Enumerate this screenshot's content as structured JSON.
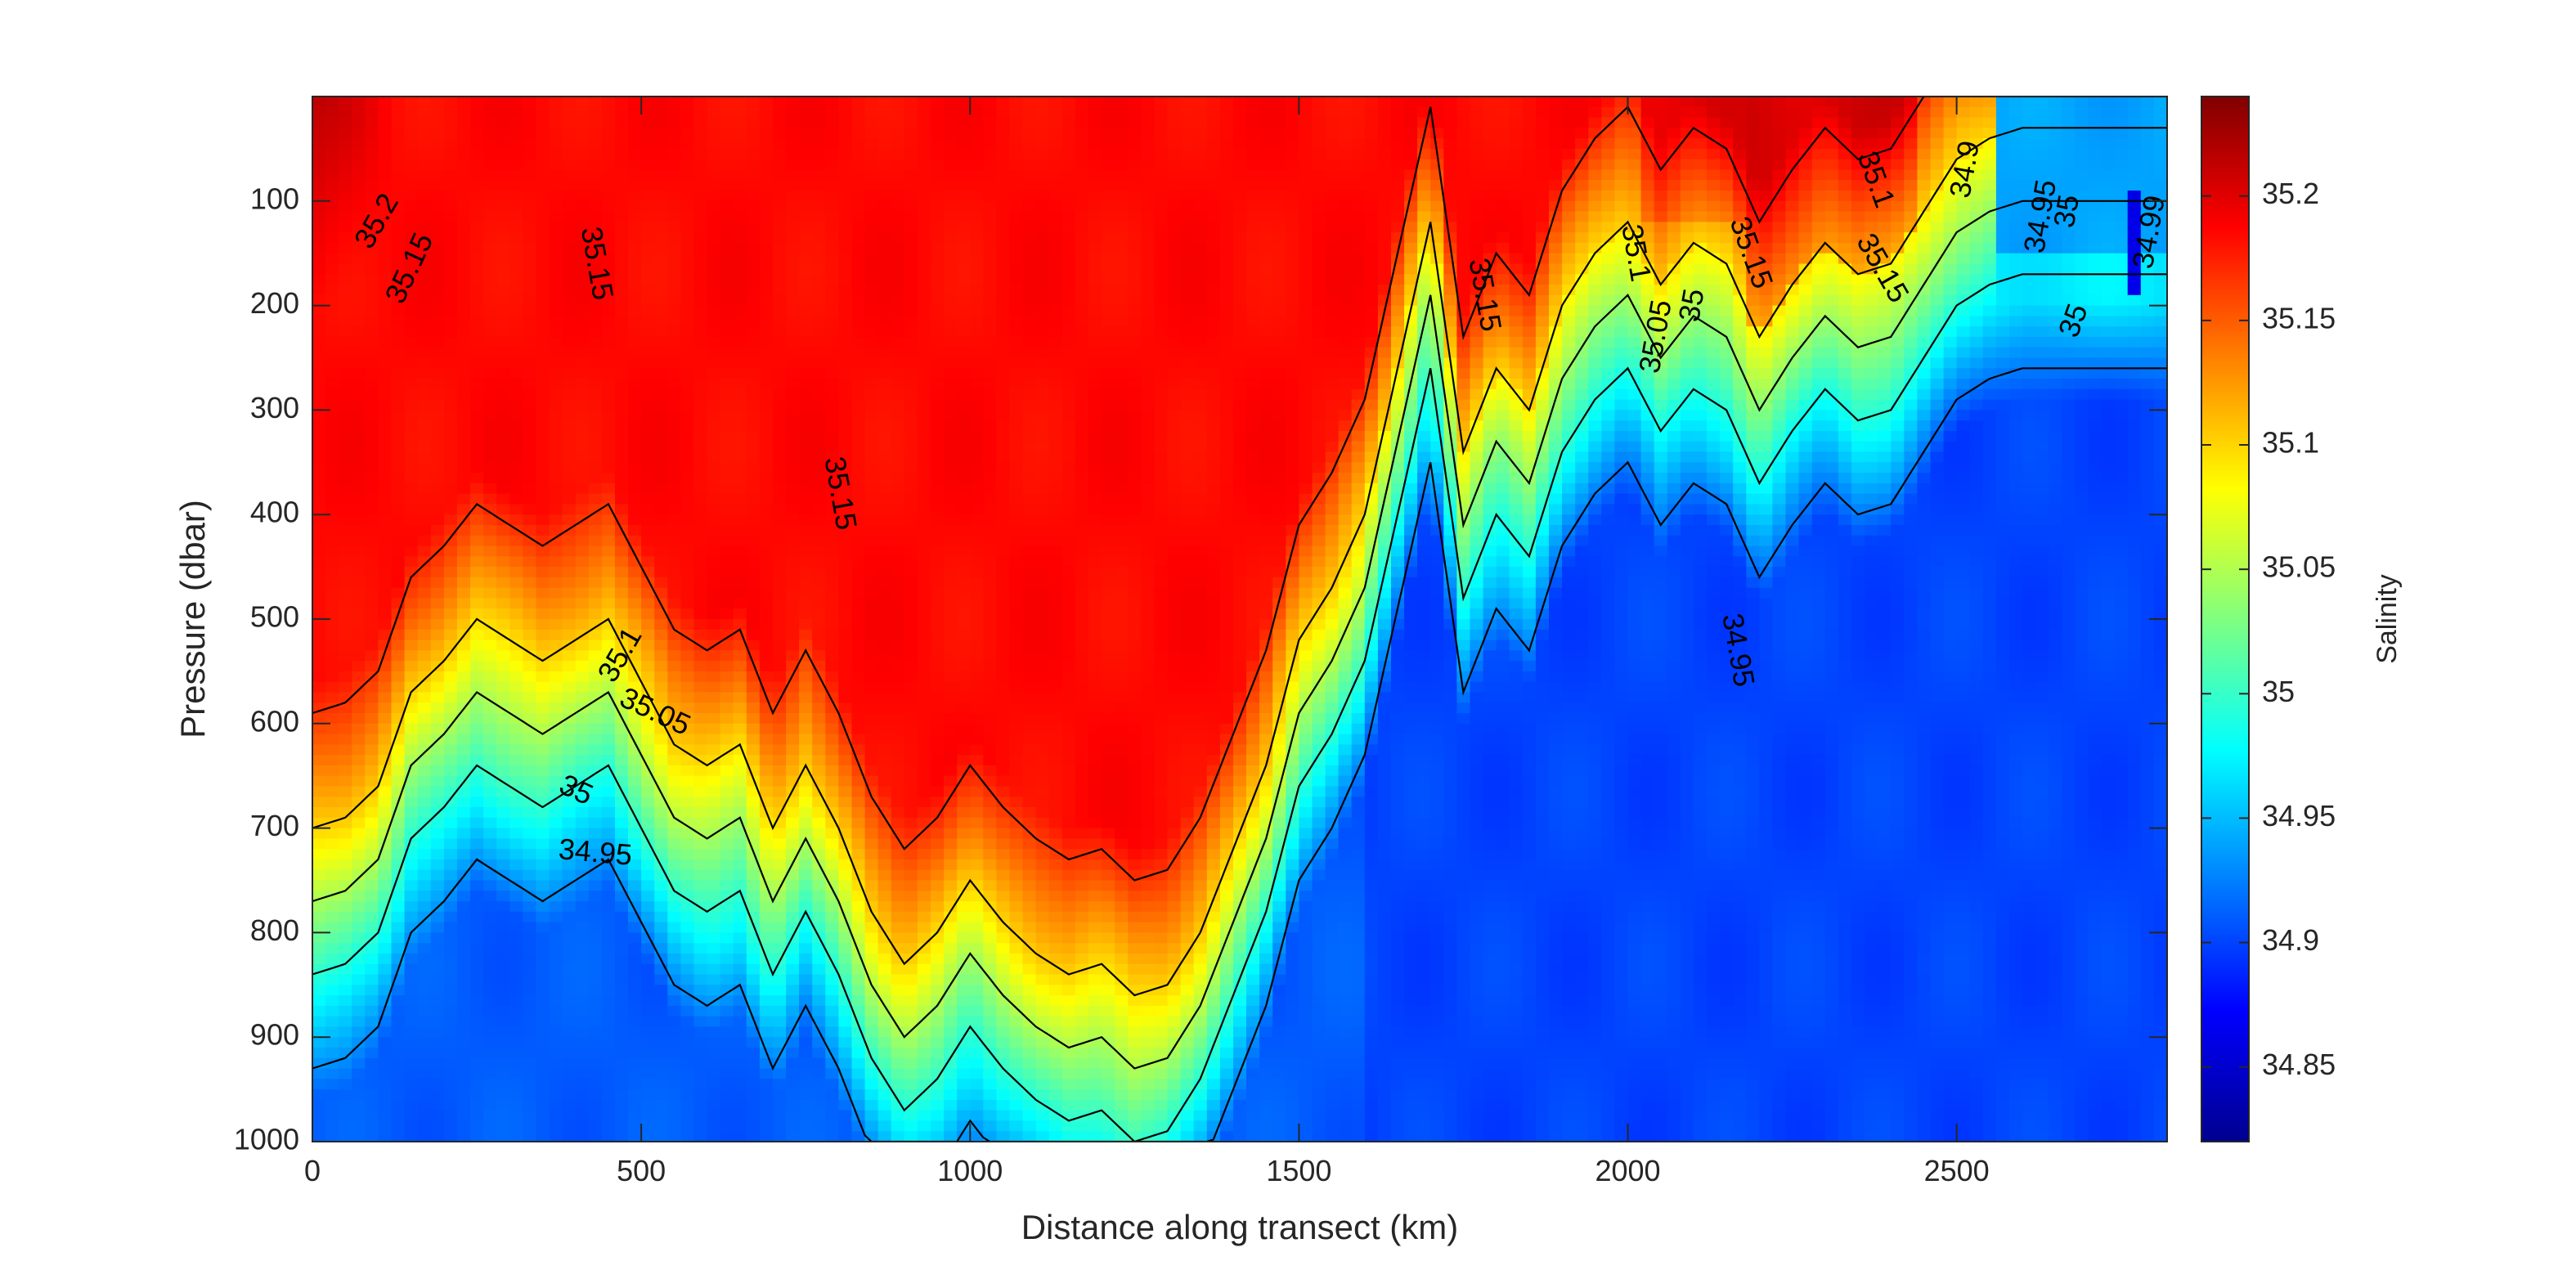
{
  "chart_data": {
    "type": "heatmap",
    "subtype": "filled-contour",
    "title": "",
    "xlabel": "Distance along transect (km)",
    "ylabel": "Pressure (dbar)",
    "colorbar_label": "Salinity",
    "xlim": [
      0,
      2820
    ],
    "ylim": [
      0,
      1000
    ],
    "y_reversed": true,
    "clim": [
      34.82,
      35.24
    ],
    "colormap": "jet",
    "colormap_stops": [
      "#00008f",
      "#0000ff",
      "#0080ff",
      "#00ffff",
      "#80ff80",
      "#ffff00",
      "#ff8000",
      "#ff0000",
      "#800000"
    ],
    "x_ticks": [
      0,
      500,
      1000,
      1500,
      2000,
      2500
    ],
    "x_tick_labels": [
      "0",
      "500",
      "1000",
      "1500",
      "2000",
      "2500"
    ],
    "y_ticks": [
      100,
      200,
      300,
      400,
      500,
      600,
      700,
      800,
      900,
      1000
    ],
    "y_tick_labels": [
      "100",
      "200",
      "300",
      "400",
      "500",
      "600",
      "700",
      "800",
      "900",
      "1000"
    ],
    "colorbar_ticks": [
      34.85,
      34.9,
      34.95,
      35,
      35.05,
      35.1,
      35.15,
      35.2
    ],
    "colorbar_tick_labels": [
      "34.85",
      "34.9",
      "34.95",
      "35",
      "35.05",
      "35.1",
      "35.15",
      "35.2"
    ],
    "contour_levels": [
      34.9,
      34.95,
      35,
      35.05,
      35.1,
      35.15,
      35.2
    ],
    "grid": false,
    "interface_depth": {
      "description_units": "pressure (dbar) of the 35.1 isohaline along distance (km)",
      "x": [
        0,
        50,
        100,
        150,
        200,
        250,
        300,
        350,
        400,
        450,
        500,
        550,
        600,
        650,
        700,
        750,
        800,
        850,
        900,
        950,
        1000,
        1050,
        1100,
        1150,
        1200,
        1250,
        1300,
        1350,
        1400,
        1450,
        1500,
        1550,
        1600,
        1650,
        1700,
        1750,
        1800,
        1850,
        1900,
        1950,
        2000,
        2050,
        2100,
        2150,
        2200,
        2250,
        2300,
        2350,
        2400,
        2450,
        2500,
        2550,
        2600,
        2650,
        2700,
        2750,
        2800,
        2820
      ],
      "depth": [
        700,
        690,
        660,
        570,
        540,
        500,
        520,
        540,
        520,
        500,
        560,
        620,
        640,
        620,
        700,
        640,
        700,
        780,
        830,
        800,
        750,
        790,
        820,
        840,
        830,
        860,
        850,
        800,
        720,
        640,
        520,
        470,
        400,
        260,
        120,
        340,
        260,
        300,
        200,
        150,
        120,
        180,
        140,
        160,
        230,
        180,
        140,
        170,
        160,
        110,
        60,
        40,
        30,
        30,
        30,
        30,
        30,
        30
      ]
    },
    "contour_labels": [
      {
        "text": "35.2",
        "x": 100,
        "y": 120,
        "angle": -60
      },
      {
        "text": "35.15",
        "x": 150,
        "y": 165,
        "angle": -65
      },
      {
        "text": "35.15",
        "x": 430,
        "y": 160,
        "angle": 80
      },
      {
        "text": "35.15",
        "x": 800,
        "y": 380,
        "angle": 80
      },
      {
        "text": "35.1",
        "x": 470,
        "y": 535,
        "angle": -60
      },
      {
        "text": "35.05",
        "x": 520,
        "y": 590,
        "angle": 25
      },
      {
        "text": "35",
        "x": 400,
        "y": 665,
        "angle": 25
      },
      {
        "text": "34.95",
        "x": 430,
        "y": 725,
        "angle": 5
      },
      {
        "text": "35.15",
        "x": 1780,
        "y": 190,
        "angle": 80
      },
      {
        "text": "35.1",
        "x": 2010,
        "y": 150,
        "angle": 80
      },
      {
        "text": "35.05",
        "x": 2045,
        "y": 230,
        "angle": -80
      },
      {
        "text": "35",
        "x": 2100,
        "y": 200,
        "angle": -80
      },
      {
        "text": "35.15",
        "x": 2185,
        "y": 150,
        "angle": 70
      },
      {
        "text": "35.15",
        "x": 2385,
        "y": 165,
        "angle": 60
      },
      {
        "text": "35.1",
        "x": 2375,
        "y": 80,
        "angle": 70
      },
      {
        "text": "34.95",
        "x": 2165,
        "y": 530,
        "angle": 80
      },
      {
        "text": "34.9",
        "x": 2515,
        "y": 70,
        "angle": -80
      },
      {
        "text": "34.95",
        "x": 2630,
        "y": 115,
        "angle": -80
      },
      {
        "text": "35",
        "x": 2670,
        "y": 110,
        "angle": -80
      },
      {
        "text": "35",
        "x": 2680,
        "y": 215,
        "angle": -70
      },
      {
        "text": "34.99",
        "x": 2795,
        "y": 130,
        "angle": -80
      }
    ]
  }
}
